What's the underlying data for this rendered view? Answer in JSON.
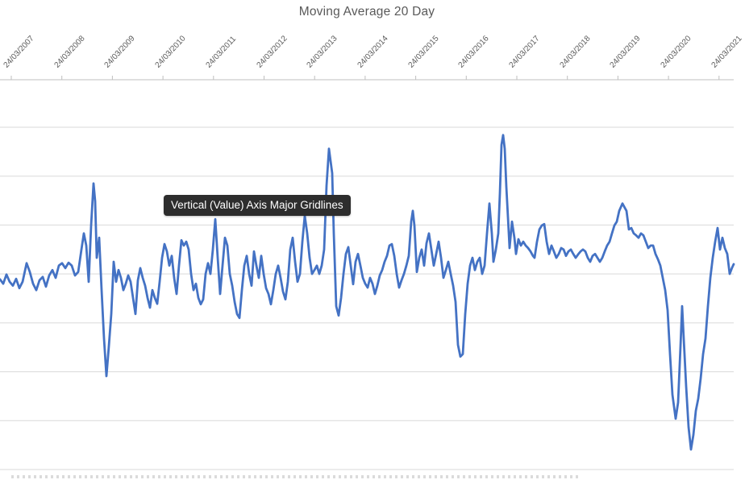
{
  "overlay": {
    "tooltip_label": "Vertical (Value) Axis Major Gridlines"
  },
  "colors": {
    "series": "#4472C4",
    "gridline": "#D9D9D9",
    "axis_line": "#BFBFBF",
    "text": "#595959",
    "tooltip_bg": "#2D2D2D",
    "tooltip_text": "#FFFFFF",
    "background": "#FFFFFF"
  },
  "chart_data": {
    "type": "line",
    "title": "Moving Average 20 Day",
    "legend": "none",
    "grid": "horizontal-major",
    "x_axis": {
      "position": "top",
      "tick_labels": [
        "24/03/2007",
        "24/03/2008",
        "24/03/2009",
        "24/03/2010",
        "24/03/2011",
        "24/03/2012",
        "24/03/2013",
        "24/03/2014",
        "24/03/2015",
        "24/03/2016",
        "24/03/2017",
        "24/03/2018",
        "24/03/2019",
        "24/03/2020",
        "24/03/2021"
      ],
      "last_label_clipped": true,
      "label_rotation_deg": 47
    },
    "y_axis": {
      "value_labels_visible": false,
      "unit": "arbitrary (no tick labels shown)",
      "gridline_values": [
        10,
        20,
        30,
        40,
        50,
        60,
        70,
        80
      ],
      "ylim": [
        7,
        91
      ]
    },
    "series_name": "Moving Average 20 Day",
    "x_unit": "pixels along date axis (24/03/2007 → 24/03/2021)",
    "points": [
      [
        0,
        48.9
      ],
      [
        4,
        48.0
      ],
      [
        8,
        49.9
      ],
      [
        12,
        48.4
      ],
      [
        16,
        47.6
      ],
      [
        20,
        49.0
      ],
      [
        24,
        47.1
      ],
      [
        28,
        48.4
      ],
      [
        33,
        52.2
      ],
      [
        37,
        50.4
      ],
      [
        41,
        48.0
      ],
      [
        45,
        46.7
      ],
      [
        49,
        48.7
      ],
      [
        53,
        49.4
      ],
      [
        57,
        47.4
      ],
      [
        61,
        49.7
      ],
      [
        65,
        50.8
      ],
      [
        69,
        49.2
      ],
      [
        73,
        51.7
      ],
      [
        77,
        52.2
      ],
      [
        81,
        51.2
      ],
      [
        85,
        52.3
      ],
      [
        89,
        51.7
      ],
      [
        93,
        49.7
      ],
      [
        97,
        50.4
      ],
      [
        101,
        55.0
      ],
      [
        104,
        58.3
      ],
      [
        107,
        55.8
      ],
      [
        110,
        48.4
      ],
      [
        113,
        59.9
      ],
      [
        116,
        68.5
      ],
      [
        118,
        64.9
      ],
      [
        120,
        53.3
      ],
      [
        123,
        57.4
      ],
      [
        126,
        46.7
      ],
      [
        129,
        36.8
      ],
      [
        132,
        29.1
      ],
      [
        135,
        35.2
      ],
      [
        138,
        41.8
      ],
      [
        141,
        52.5
      ],
      [
        144,
        48.4
      ],
      [
        147,
        50.8
      ],
      [
        150,
        49.2
      ],
      [
        153,
        46.7
      ],
      [
        156,
        48.0
      ],
      [
        159,
        49.7
      ],
      [
        162,
        48.4
      ],
      [
        165,
        45.1
      ],
      [
        168,
        41.8
      ],
      [
        171,
        48.7
      ],
      [
        174,
        51.2
      ],
      [
        177,
        49.2
      ],
      [
        180,
        47.6
      ],
      [
        183,
        45.1
      ],
      [
        186,
        43.1
      ],
      [
        189,
        46.7
      ],
      [
        192,
        45.1
      ],
      [
        195,
        43.9
      ],
      [
        198,
        48.4
      ],
      [
        201,
        53.3
      ],
      [
        204,
        56.1
      ],
      [
        207,
        54.6
      ],
      [
        210,
        51.7
      ],
      [
        213,
        53.7
      ],
      [
        216,
        49.2
      ],
      [
        219,
        45.9
      ],
      [
        222,
        51.7
      ],
      [
        225,
        56.9
      ],
      [
        228,
        55.8
      ],
      [
        231,
        56.6
      ],
      [
        234,
        55.0
      ],
      [
        237,
        50.0
      ],
      [
        240,
        46.7
      ],
      [
        243,
        48.0
      ],
      [
        246,
        45.1
      ],
      [
        249,
        43.8
      ],
      [
        252,
        44.8
      ],
      [
        255,
        50.0
      ],
      [
        258,
        52.2
      ],
      [
        261,
        50.0
      ],
      [
        264,
        55.0
      ],
      [
        267,
        61.2
      ],
      [
        270,
        53.3
      ],
      [
        273,
        45.9
      ],
      [
        276,
        51.7
      ],
      [
        279,
        57.4
      ],
      [
        282,
        55.8
      ],
      [
        285,
        50.0
      ],
      [
        288,
        47.6
      ],
      [
        291,
        44.3
      ],
      [
        294,
        41.8
      ],
      [
        297,
        41.0
      ],
      [
        300,
        46.7
      ],
      [
        303,
        51.7
      ],
      [
        306,
        53.7
      ],
      [
        309,
        50.0
      ],
      [
        312,
        47.6
      ],
      [
        315,
        54.6
      ],
      [
        318,
        51.7
      ],
      [
        321,
        49.2
      ],
      [
        324,
        53.7
      ],
      [
        327,
        50.0
      ],
      [
        330,
        47.1
      ],
      [
        333,
        45.9
      ],
      [
        336,
        43.8
      ],
      [
        339,
        46.7
      ],
      [
        342,
        50.0
      ],
      [
        345,
        51.7
      ],
      [
        348,
        49.2
      ],
      [
        351,
        46.4
      ],
      [
        354,
        44.8
      ],
      [
        357,
        48.4
      ],
      [
        360,
        55.0
      ],
      [
        363,
        57.4
      ],
      [
        366,
        52.5
      ],
      [
        369,
        48.4
      ],
      [
        372,
        50.0
      ],
      [
        375,
        56.6
      ],
      [
        378,
        61.9
      ],
      [
        381,
        58.3
      ],
      [
        384,
        53.3
      ],
      [
        387,
        50.0
      ],
      [
        390,
        50.8
      ],
      [
        393,
        51.7
      ],
      [
        396,
        50.0
      ],
      [
        399,
        51.7
      ],
      [
        402,
        55.0
      ],
      [
        405,
        68.1
      ],
      [
        408,
        75.6
      ],
      [
        410,
        73.1
      ],
      [
        412,
        70.6
      ],
      [
        414,
        58.3
      ],
      [
        417,
        43.4
      ],
      [
        420,
        41.5
      ],
      [
        423,
        45.1
      ],
      [
        426,
        50.0
      ],
      [
        429,
        54.1
      ],
      [
        432,
        55.5
      ],
      [
        435,
        51.7
      ],
      [
        438,
        47.9
      ],
      [
        441,
        52.5
      ],
      [
        444,
        54.1
      ],
      [
        447,
        51.7
      ],
      [
        450,
        49.2
      ],
      [
        453,
        48.0
      ],
      [
        456,
        47.2
      ],
      [
        459,
        49.2
      ],
      [
        462,
        48.0
      ],
      [
        465,
        45.9
      ],
      [
        468,
        47.6
      ],
      [
        471,
        49.7
      ],
      [
        474,
        50.8
      ],
      [
        477,
        52.5
      ],
      [
        480,
        53.7
      ],
      [
        483,
        55.8
      ],
      [
        486,
        56.1
      ],
      [
        489,
        53.7
      ],
      [
        492,
        50.0
      ],
      [
        495,
        47.2
      ],
      [
        498,
        48.7
      ],
      [
        501,
        50.0
      ],
      [
        504,
        51.7
      ],
      [
        507,
        53.7
      ],
      [
        510,
        60.7
      ],
      [
        512,
        62.9
      ],
      [
        514,
        59.9
      ],
      [
        517,
        50.4
      ],
      [
        520,
        53.3
      ],
      [
        523,
        55.0
      ],
      [
        526,
        51.7
      ],
      [
        529,
        56.3
      ],
      [
        532,
        58.3
      ],
      [
        535,
        55.0
      ],
      [
        538,
        51.7
      ],
      [
        541,
        54.1
      ],
      [
        544,
        56.6
      ],
      [
        547,
        53.3
      ],
      [
        550,
        49.2
      ],
      [
        553,
        50.8
      ],
      [
        556,
        52.5
      ],
      [
        559,
        50.0
      ],
      [
        562,
        47.6
      ],
      [
        565,
        44.3
      ],
      [
        568,
        35.5
      ],
      [
        571,
        33.1
      ],
      [
        574,
        33.6
      ],
      [
        577,
        41.8
      ],
      [
        580,
        48.0
      ],
      [
        583,
        51.7
      ],
      [
        586,
        53.3
      ],
      [
        589,
        50.8
      ],
      [
        592,
        52.5
      ],
      [
        595,
        53.3
      ],
      [
        598,
        50.0
      ],
      [
        601,
        51.7
      ],
      [
        604,
        58.3
      ],
      [
        607,
        64.4
      ],
      [
        610,
        58.3
      ],
      [
        612,
        52.5
      ],
      [
        615,
        55.0
      ],
      [
        618,
        58.3
      ],
      [
        620,
        66.5
      ],
      [
        622,
        76.4
      ],
      [
        624,
        78.4
      ],
      [
        626,
        75.6
      ],
      [
        628,
        67.8
      ],
      [
        630,
        61.6
      ],
      [
        632,
        55.3
      ],
      [
        635,
        60.7
      ],
      [
        638,
        57.4
      ],
      [
        640,
        54.1
      ],
      [
        643,
        57.1
      ],
      [
        646,
        55.8
      ],
      [
        649,
        56.6
      ],
      [
        652,
        55.8
      ],
      [
        655,
        55.3
      ],
      [
        658,
        54.6
      ],
      [
        661,
        53.7
      ],
      [
        663,
        53.3
      ],
      [
        666,
        56.6
      ],
      [
        669,
        59.1
      ],
      [
        672,
        59.9
      ],
      [
        675,
        60.2
      ],
      [
        678,
        56.6
      ],
      [
        681,
        54.1
      ],
      [
        684,
        55.8
      ],
      [
        687,
        54.6
      ],
      [
        690,
        53.3
      ],
      [
        693,
        54.1
      ],
      [
        696,
        55.3
      ],
      [
        699,
        55.0
      ],
      [
        702,
        53.7
      ],
      [
        705,
        54.6
      ],
      [
        708,
        55.0
      ],
      [
        711,
        54.1
      ],
      [
        714,
        53.3
      ],
      [
        717,
        54.0
      ],
      [
        720,
        54.6
      ],
      [
        723,
        55.0
      ],
      [
        726,
        54.6
      ],
      [
        729,
        53.3
      ],
      [
        732,
        52.5
      ],
      [
        735,
        53.7
      ],
      [
        738,
        54.1
      ],
      [
        741,
        53.3
      ],
      [
        744,
        52.5
      ],
      [
        747,
        53.3
      ],
      [
        750,
        54.6
      ],
      [
        753,
        55.8
      ],
      [
        756,
        56.6
      ],
      [
        759,
        58.3
      ],
      [
        762,
        59.9
      ],
      [
        765,
        60.7
      ],
      [
        768,
        62.9
      ],
      [
        772,
        64.4
      ],
      [
        775,
        63.5
      ],
      [
        777,
        62.9
      ],
      [
        780,
        59.1
      ],
      [
        783,
        59.4
      ],
      [
        786,
        58.3
      ],
      [
        789,
        57.9
      ],
      [
        792,
        57.4
      ],
      [
        795,
        58.3
      ],
      [
        798,
        57.9
      ],
      [
        801,
        56.6
      ],
      [
        804,
        55.3
      ],
      [
        807,
        55.8
      ],
      [
        810,
        55.8
      ],
      [
        813,
        54.1
      ],
      [
        816,
        53.0
      ],
      [
        819,
        51.7
      ],
      [
        822,
        49.2
      ],
      [
        825,
        46.7
      ],
      [
        828,
        42.6
      ],
      [
        831,
        33.6
      ],
      [
        834,
        25.3
      ],
      [
        838,
        20.4
      ],
      [
        841,
        23.7
      ],
      [
        844,
        35.2
      ],
      [
        846,
        43.4
      ],
      [
        848,
        36.8
      ],
      [
        851,
        27.0
      ],
      [
        854,
        18.7
      ],
      [
        857,
        14.1
      ],
      [
        860,
        17.1
      ],
      [
        863,
        22.0
      ],
      [
        866,
        24.5
      ],
      [
        869,
        28.6
      ],
      [
        872,
        33.6
      ],
      [
        875,
        36.8
      ],
      [
        878,
        43.4
      ],
      [
        881,
        49.2
      ],
      [
        884,
        53.3
      ],
      [
        887,
        56.6
      ],
      [
        890,
        59.4
      ],
      [
        893,
        55.0
      ],
      [
        896,
        57.4
      ],
      [
        899,
        55.3
      ],
      [
        902,
        54.1
      ],
      [
        905,
        50.0
      ],
      [
        908,
        51.3
      ],
      [
        910,
        52.0
      ]
    ]
  }
}
